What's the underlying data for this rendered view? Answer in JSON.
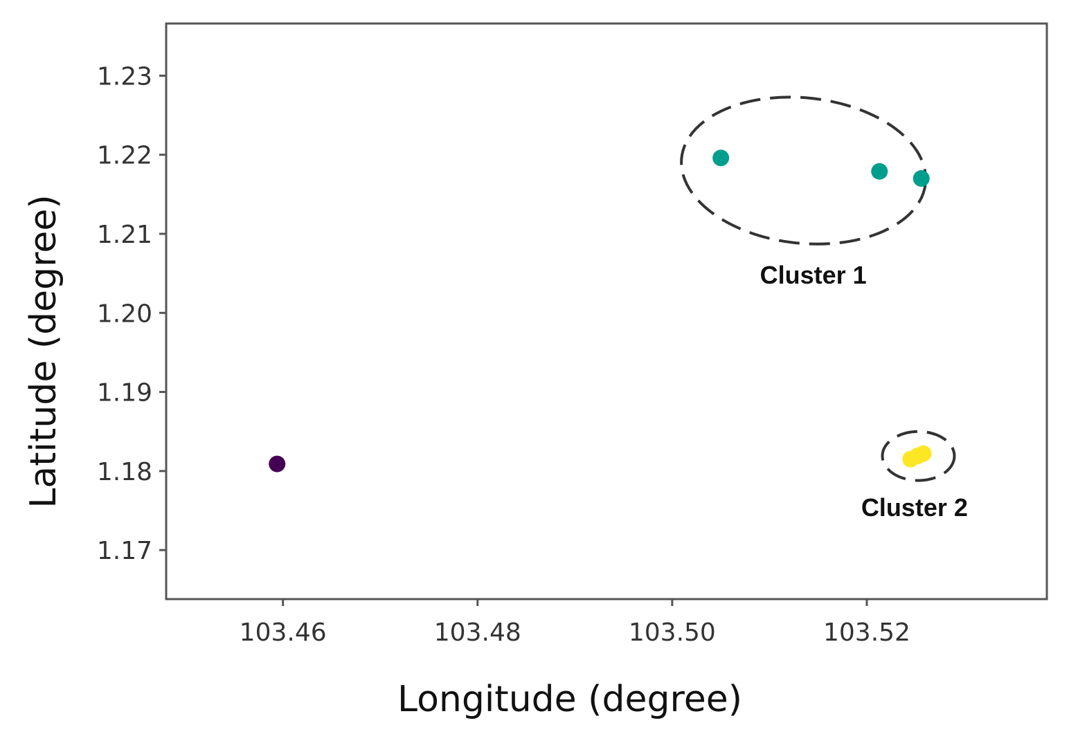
{
  "chart_data": {
    "type": "scatter",
    "title": "",
    "xlabel": "Longitude (degree)",
    "ylabel": "Latitude (degree)",
    "xlim": [
      103.448,
      103.5385
    ],
    "ylim": [
      1.1638,
      1.2366
    ],
    "grid": false,
    "x_ticks": [
      103.46,
      103.48,
      103.5,
      103.52
    ],
    "x_tick_labels": [
      "103.46",
      "103.48",
      "103.50",
      "103.52"
    ],
    "y_ticks": [
      1.17,
      1.18,
      1.19,
      1.2,
      1.21,
      1.22,
      1.23
    ],
    "y_tick_labels": [
      "1.17",
      "1.18",
      "1.19",
      "1.20",
      "1.21",
      "1.22",
      "1.23"
    ],
    "series": [
      {
        "color": "#440154",
        "points": [
          [
            103.4594,
            1.1809
          ]
        ]
      },
      {
        "color": "#009e8c",
        "points": [
          [
            103.505,
            1.2196
          ],
          [
            103.5213,
            1.2179
          ],
          [
            103.5256,
            1.217
          ]
        ]
      },
      {
        "color": "#fde725",
        "points": [
          [
            103.5245,
            1.1815
          ],
          [
            103.5252,
            1.1819
          ],
          [
            103.5258,
            1.1822
          ]
        ]
      }
    ],
    "annotations": [
      {
        "text": "Cluster 1",
        "x": 103.5145,
        "y": 1.2037
      },
      {
        "text": "Cluster 2",
        "x": 103.5249,
        "y": 1.1743
      }
    ],
    "cluster_outlines": [
      {
        "cx": 103.5135,
        "cy": 1.218,
        "rx": 0.0126,
        "ry": 0.0092,
        "label": "Cluster 1"
      },
      {
        "cx": 103.5253,
        "cy": 1.1819,
        "rx": 0.0037,
        "ry": 0.0031,
        "label": "Cluster 2"
      }
    ]
  }
}
